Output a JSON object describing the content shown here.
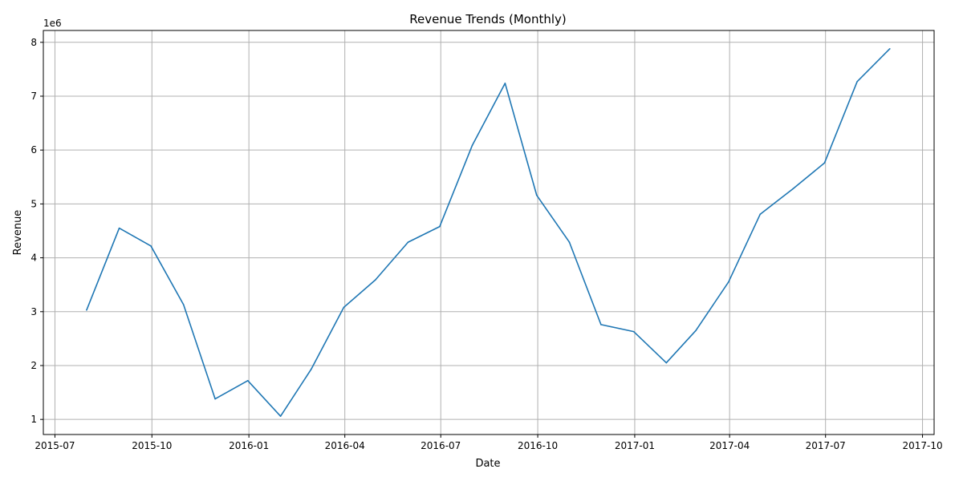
{
  "chart_data": {
    "type": "line",
    "title": "Revenue Trends (Monthly)",
    "xlabel": "Date",
    "ylabel": "Revenue",
    "y_offset_label": "1e6",
    "grid": true,
    "x_ticks": [
      "2015-07",
      "2015-10",
      "2016-01",
      "2016-04",
      "2016-07",
      "2016-10",
      "2017-01",
      "2017-04",
      "2017-07",
      "2017-10"
    ],
    "y_ticks": [
      "1",
      "2",
      "3",
      "4",
      "5",
      "6",
      "7",
      "8"
    ],
    "ylim": [
      0.72,
      8.22
    ],
    "xlim": [
      "2015-06-20",
      "2017-10-12"
    ],
    "series": [
      {
        "name": "Revenue",
        "color": "#1f77b4",
        "x": [
          "2015-07-31",
          "2015-08-31",
          "2015-09-30",
          "2015-10-31",
          "2015-11-30",
          "2015-12-31",
          "2016-01-31",
          "2016-02-29",
          "2016-03-31",
          "2016-04-30",
          "2016-05-31",
          "2016-06-30",
          "2016-07-31",
          "2016-08-31",
          "2016-09-30",
          "2016-10-31",
          "2016-11-30",
          "2016-12-31",
          "2017-01-31",
          "2017-02-28",
          "2017-03-31",
          "2017-04-30",
          "2017-05-31",
          "2017-06-30",
          "2017-07-31",
          "2017-08-31"
        ],
        "values": [
          3.03,
          4.55,
          4.22,
          3.13,
          1.38,
          1.72,
          1.06,
          1.93,
          3.08,
          3.59,
          4.29,
          4.58,
          6.09,
          7.24,
          5.16,
          4.29,
          2.76,
          2.63,
          2.05,
          2.65,
          3.55,
          4.81,
          5.28,
          5.76,
          7.27,
          7.88
        ]
      }
    ]
  }
}
